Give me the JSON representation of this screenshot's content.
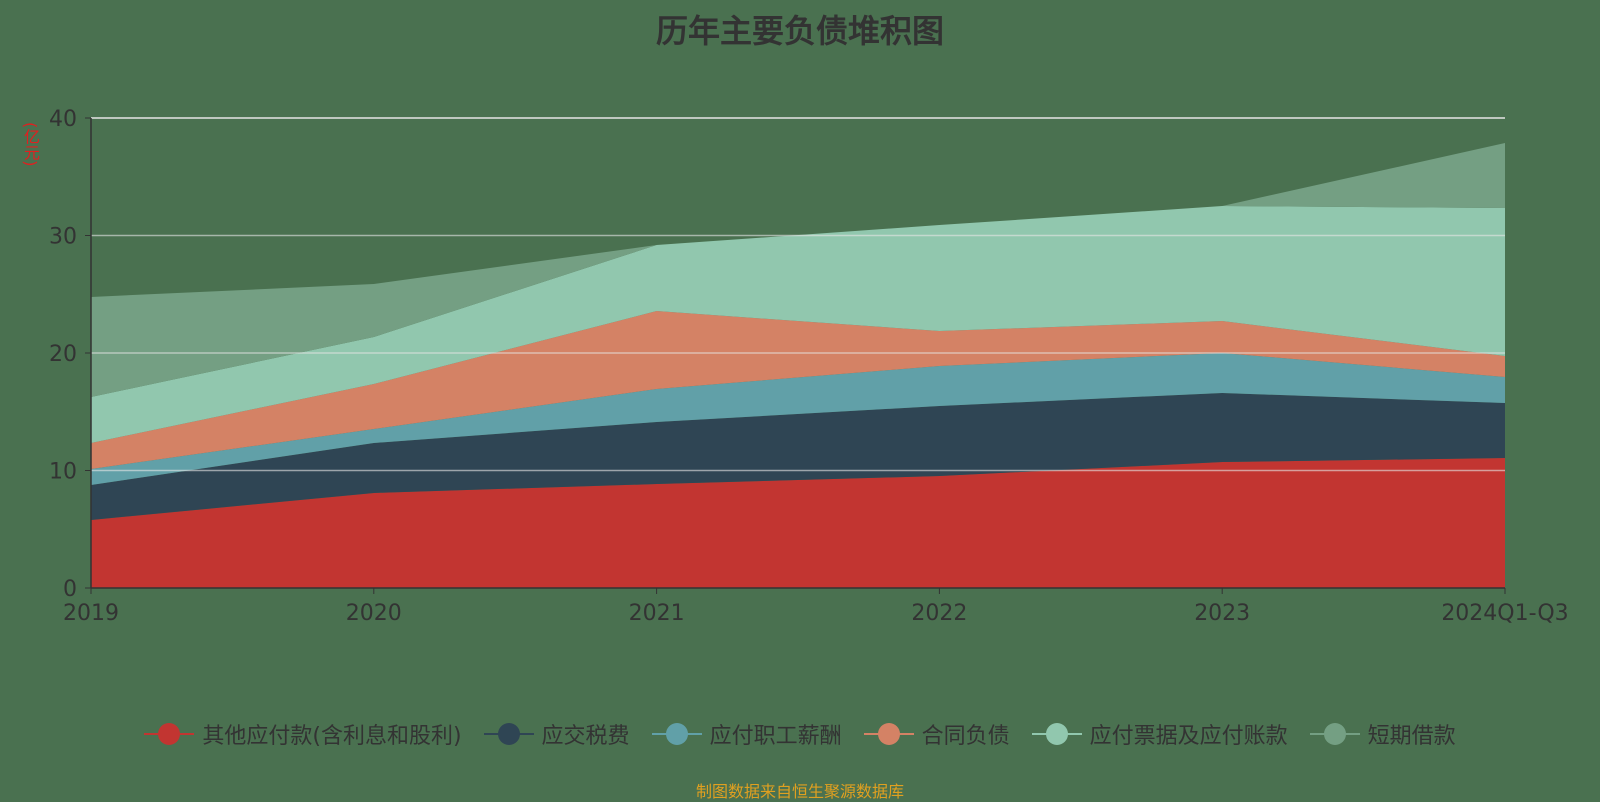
{
  "chart_data": {
    "type": "area",
    "stacked": true,
    "title": "历年主要负债堆积图",
    "ylabel": "(亿元)",
    "xlabel": "",
    "categories": [
      "2019",
      "2020",
      "2021",
      "2022",
      "2023",
      "2024Q1-Q3"
    ],
    "ylim": [
      0,
      40
    ],
    "yticks": [
      0,
      10,
      20,
      30,
      40
    ],
    "grid": true,
    "legend_position": "bottom",
    "series": [
      {
        "name": "其他应付款(含利息和股利)",
        "color": "#c23531",
        "values": [
          5.79,
          8.09,
          8.85,
          9.53,
          10.72,
          11.06
        ]
      },
      {
        "name": "应交税费",
        "color": "#2f4554",
        "values": [
          2.98,
          4.25,
          5.28,
          5.96,
          5.88,
          4.68
        ]
      },
      {
        "name": "应付职工薪酬",
        "color": "#61a0a8",
        "values": [
          1.36,
          1.19,
          2.81,
          3.4,
          3.4,
          2.22
        ]
      },
      {
        "name": "合同负债",
        "color": "#d48265",
        "values": [
          2.21,
          3.83,
          6.63,
          2.98,
          2.72,
          1.78
        ]
      },
      {
        "name": "应付票据及应付账款",
        "color": "#91c7ae",
        "values": [
          3.92,
          4.0,
          5.62,
          9.02,
          9.79,
          12.6
        ]
      },
      {
        "name": "短期借款",
        "color": "#749f83",
        "values": [
          8.51,
          4.51,
          0,
          0,
          0,
          5.53
        ]
      }
    ]
  },
  "footer": "制图数据来自恒生聚源数据库"
}
